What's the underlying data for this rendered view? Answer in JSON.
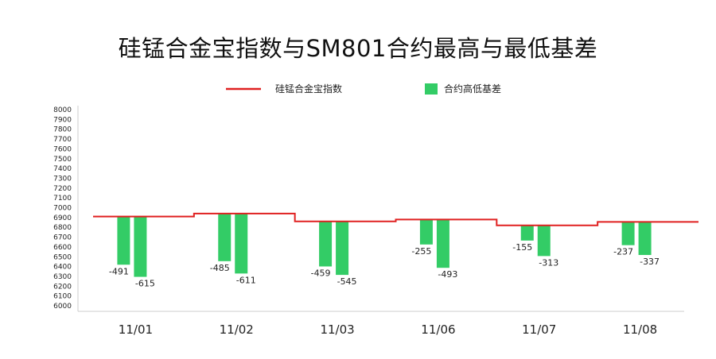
{
  "chart_data": {
    "type": "bar",
    "title": "硅锰合金宝指数与SM801合约最高与最低基差",
    "categories": [
      "11/01",
      "11/02",
      "11/03",
      "11/06",
      "11/07",
      "11/08"
    ],
    "series": [
      {
        "name": "硅锰合金宝指数",
        "type": "step-line",
        "color": "#e02020",
        "values": [
          6910,
          6940,
          6860,
          6880,
          6820,
          6855
        ]
      },
      {
        "name": "合约高低基差",
        "type": "bar",
        "color": "#33cc66",
        "pairs": [
          [
            -491,
            -615
          ],
          [
            -485,
            -611
          ],
          [
            -459,
            -545
          ],
          [
            -255,
            -493
          ],
          [
            -155,
            -313
          ],
          [
            -237,
            -337
          ]
        ]
      }
    ],
    "data_labels": [
      [
        "-491",
        "-615"
      ],
      [
        "-485",
        "-611"
      ],
      [
        "-459",
        "-545"
      ],
      [
        "-255",
        "-493"
      ],
      [
        "-155",
        "-313"
      ],
      [
        "-237",
        "-337"
      ]
    ],
    "ylim": [
      6000,
      8000
    ],
    "yticks": [
      8000,
      7900,
      7800,
      7700,
      7600,
      7500,
      7400,
      7300,
      7200,
      7100,
      7000,
      6900,
      6800,
      6700,
      6600,
      6500,
      6400,
      6300,
      6200,
      6100,
      6000
    ],
    "legend": [
      "硅锰合金宝指数",
      "合约高低基差"
    ],
    "legend_position": "top-center",
    "grid": false
  }
}
